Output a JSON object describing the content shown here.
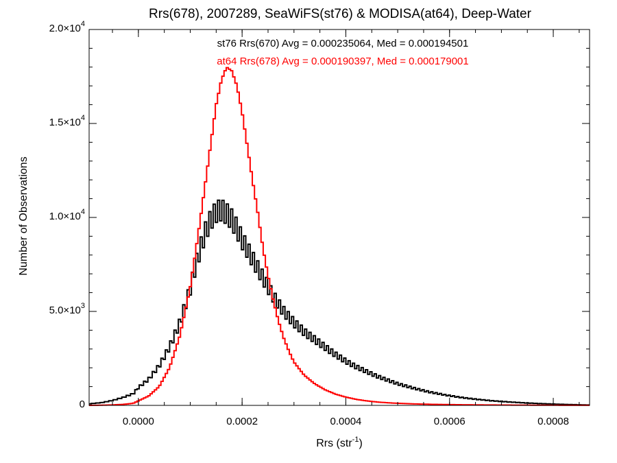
{
  "chart_data": {
    "type": "line",
    "title": "Rrs(678), 2007289, SeaWiFS(st76) & MODISA(at64), Deep-Water",
    "xlabel": "Rrs (str",
    "xlabel_sup": "-1",
    "xlabel_suffix": ")",
    "ylabel": "Number of Observations",
    "xlim": [
      -9.5e-05,
      0.00087
    ],
    "ylim": [
      0,
      20000
    ],
    "grid": false,
    "x_ticks": [
      {
        "value": 0.0,
        "label": "0.0000"
      },
      {
        "value": 0.0002,
        "label": "0.0002"
      },
      {
        "value": 0.0004,
        "label": "0.0004"
      },
      {
        "value": 0.0006,
        "label": "0.0006"
      },
      {
        "value": 0.0008,
        "label": "0.0008"
      }
    ],
    "y_ticks": [
      {
        "value": 0,
        "mantissa": "0",
        "exp": ""
      },
      {
        "value": 5000,
        "mantissa": "5.0×10",
        "exp": "3"
      },
      {
        "value": 10000,
        "mantissa": "1.0×10",
        "exp": "4"
      },
      {
        "value": 15000,
        "mantissa": "1.5×10",
        "exp": "4"
      },
      {
        "value": 20000,
        "mantissa": "2.0×10",
        "exp": "4"
      }
    ],
    "annotations": [
      {
        "text": "st76 Rrs(670) Avg = 0.000235064, Med = 0.000194501",
        "color": "#000000"
      },
      {
        "text": "at64 Rrs(678) Avg = 0.000190397, Med = 0.000179001",
        "color": "#ff0000"
      }
    ],
    "series": [
      {
        "color": "#000000",
        "style": "step-histogram",
        "x": [
          -9.5e-05,
          -7e-05,
          -5e-05,
          -3e-05,
          -1e-05,
          0.0,
          2e-05,
          4e-05,
          6e-05,
          8e-05,
          0.0001,
          0.00011,
          0.00012,
          0.00013,
          0.00014,
          0.00015,
          0.00016,
          0.00017,
          0.00018,
          0.00019,
          0.0002,
          0.00021,
          0.00022,
          0.00023,
          0.00024,
          0.00025,
          0.00026,
          0.00027,
          0.00028,
          0.00029,
          0.0003,
          0.00032,
          0.00034,
          0.00036,
          0.00038,
          0.0004,
          0.00042,
          0.00044,
          0.00046,
          0.00048,
          0.0005,
          0.00053,
          0.00056,
          0.00059,
          0.00062,
          0.00065,
          0.00068,
          0.00071,
          0.00074,
          0.00077,
          0.0008,
          0.00083,
          0.00087
        ],
        "y": [
          80,
          150,
          260,
          420,
          620,
          950,
          1400,
          2100,
          3100,
          4400,
          6200,
          7400,
          8400,
          9300,
          9900,
          10300,
          10400,
          10200,
          9900,
          9400,
          8800,
          8300,
          7800,
          7300,
          6800,
          6300,
          5800,
          5400,
          5000,
          4700,
          4400,
          3900,
          3500,
          3100,
          2700,
          2350,
          2050,
          1800,
          1550,
          1350,
          1150,
          920,
          720,
          560,
          430,
          330,
          250,
          190,
          140,
          100,
          70,
          45,
          20
        ]
      },
      {
        "color": "#ff0000",
        "style": "step-histogram",
        "x": [
          -9.5e-05,
          -7e-05,
          -5e-05,
          -3e-05,
          -1e-05,
          0.0,
          2e-05,
          4e-05,
          6e-05,
          8e-05,
          0.0001,
          0.00011,
          0.00012,
          0.00013,
          0.00014,
          0.00015,
          0.00016,
          0.00017,
          0.00018,
          0.00019,
          0.0002,
          0.00021,
          0.00022,
          0.00023,
          0.00024,
          0.00025,
          0.00026,
          0.00027,
          0.00028,
          0.00029,
          0.0003,
          0.00032,
          0.00034,
          0.00036,
          0.00038,
          0.0004,
          0.00042,
          0.00044,
          0.00046,
          0.00048,
          0.0005,
          0.00053,
          0.00056,
          0.00059,
          0.00062,
          0.00065,
          0.00068,
          0.00071,
          0.00074,
          0.00077,
          0.0008,
          0.00083,
          0.00087
        ],
        "y": [
          0,
          10,
          25,
          50,
          110,
          240,
          500,
          1000,
          2000,
          3700,
          6300,
          8100,
          10000,
          12000,
          14000,
          16000,
          17300,
          18000,
          17800,
          17000,
          15600,
          13800,
          12000,
          10300,
          8400,
          6900,
          5600,
          4500,
          3600,
          2900,
          2300,
          1600,
          1150,
          830,
          600,
          440,
          320,
          240,
          180,
          140,
          110,
          80,
          60,
          45,
          35,
          28,
          22,
          17,
          13,
          10,
          8,
          5,
          3
        ]
      }
    ]
  }
}
